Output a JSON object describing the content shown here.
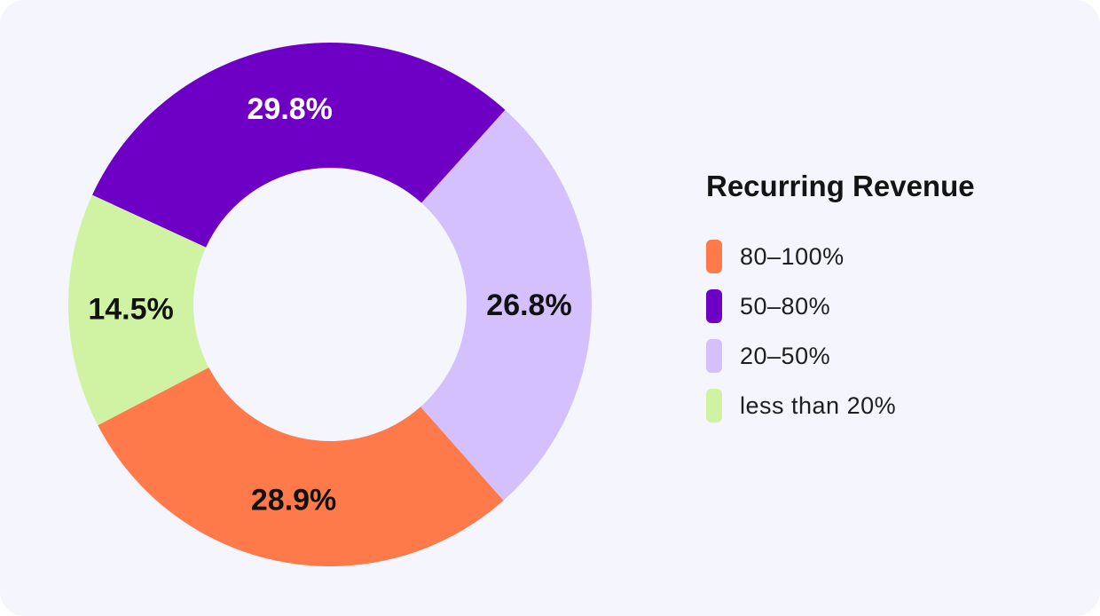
{
  "chart_data": {
    "type": "pie",
    "variant": "donut",
    "title": "",
    "legend_title": "Recurring Revenue",
    "legend_position": "right",
    "slices": [
      {
        "label": "50–80%",
        "value": 29.8,
        "display": "29.8%",
        "color": "#6e00c6",
        "label_color": "#ffffff"
      },
      {
        "label": "20–50%",
        "value": 26.8,
        "display": "26.8%",
        "color": "#d3c0fd",
        "label_color": "#111111"
      },
      {
        "label": "80–100%",
        "value": 28.9,
        "display": "28.9%",
        "color": "#ff7a4a",
        "label_color": "#111111"
      },
      {
        "label": "less than 20%",
        "value": 14.5,
        "display": "14.5%",
        "color": "#d0f3a3",
        "label_color": "#111111"
      }
    ],
    "legend_order": [
      "80–100%",
      "50–80%",
      "20–50%",
      "less than 20%"
    ]
  },
  "legend": {
    "title": "Recurring Revenue",
    "items": [
      {
        "label": "80–100%",
        "color": "#ff7a4a"
      },
      {
        "label": "50–80%",
        "color": "#6e00c6"
      },
      {
        "label": "20–50%",
        "color": "#d3c0fd"
      },
      {
        "label": "less than 20%",
        "color": "#d0f3a3"
      }
    ]
  },
  "colors": {
    "background": "#f4f5fd"
  }
}
